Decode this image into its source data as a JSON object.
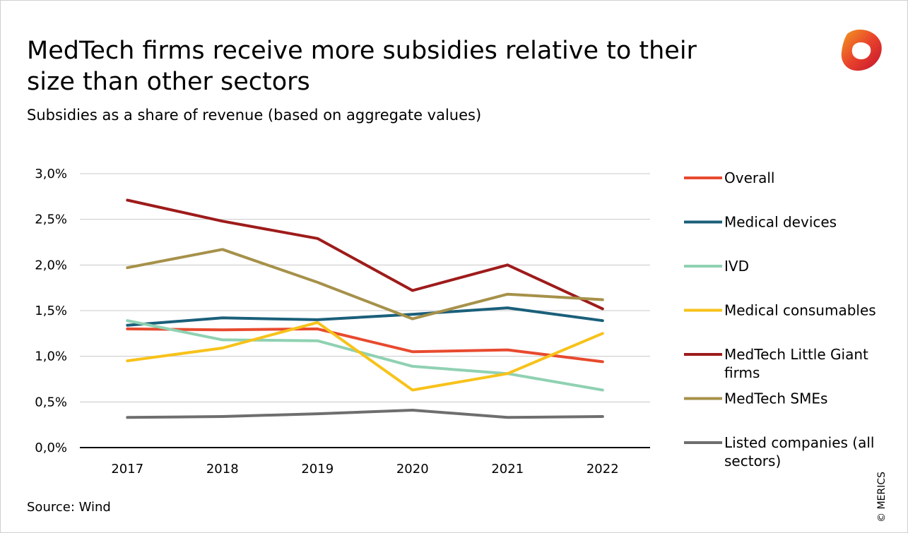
{
  "title": "MedTech firms receive more subsidies relative to their size than other sectors",
  "subtitle": "Subsidies as a share of revenue (based on aggregate values)",
  "source": "Source: Wind",
  "copyright": "© MERICS",
  "logo_icon": "merics-logo-icon",
  "chart_data": {
    "type": "line",
    "x": [
      "2017",
      "2018",
      "2019",
      "2020",
      "2021",
      "2022"
    ],
    "y_ticks": [
      "0,0%",
      "0,5%",
      "1,0%",
      "1,5%",
      "2,0%",
      "2,5%",
      "3,0%"
    ],
    "ylim": [
      0,
      3.0
    ],
    "grid": true,
    "legend_position": "right",
    "series": [
      {
        "name": "Overall",
        "color": "#e84a2f",
        "values": [
          1.3,
          1.29,
          1.3,
          1.05,
          1.07,
          0.94
        ]
      },
      {
        "name": "Medical devices",
        "color": "#1a5f7a",
        "values": [
          1.34,
          1.42,
          1.4,
          1.46,
          1.53,
          1.39
        ]
      },
      {
        "name": "IVD",
        "color": "#8fd1b2",
        "values": [
          1.39,
          1.18,
          1.17,
          0.89,
          0.81,
          0.63
        ]
      },
      {
        "name": "Medical consumables",
        "color": "#f7c21a",
        "values": [
          0.95,
          1.09,
          1.37,
          0.63,
          0.81,
          1.25
        ]
      },
      {
        "name": "MedTech Little Giant firms",
        "color": "#9e1b1b",
        "values": [
          2.71,
          2.48,
          2.29,
          1.72,
          2.0,
          1.52
        ]
      },
      {
        "name": "MedTech SMEs",
        "color": "#a6914a",
        "values": [
          1.97,
          2.17,
          1.81,
          1.41,
          1.68,
          1.62
        ]
      },
      {
        "name": "Listed companies (all sectors)",
        "color": "#6e6e6e",
        "values": [
          0.33,
          0.34,
          0.37,
          0.41,
          0.33,
          0.34
        ]
      }
    ],
    "legend_lines": [
      [
        "Overall"
      ],
      [
        "Medical devices"
      ],
      [
        "IVD"
      ],
      [
        "Medical consumables"
      ],
      [
        "MedTech Little Giant",
        "firms"
      ],
      [
        "MedTech SMEs"
      ],
      [
        "Listed companies (all",
        "sectors)"
      ]
    ]
  }
}
